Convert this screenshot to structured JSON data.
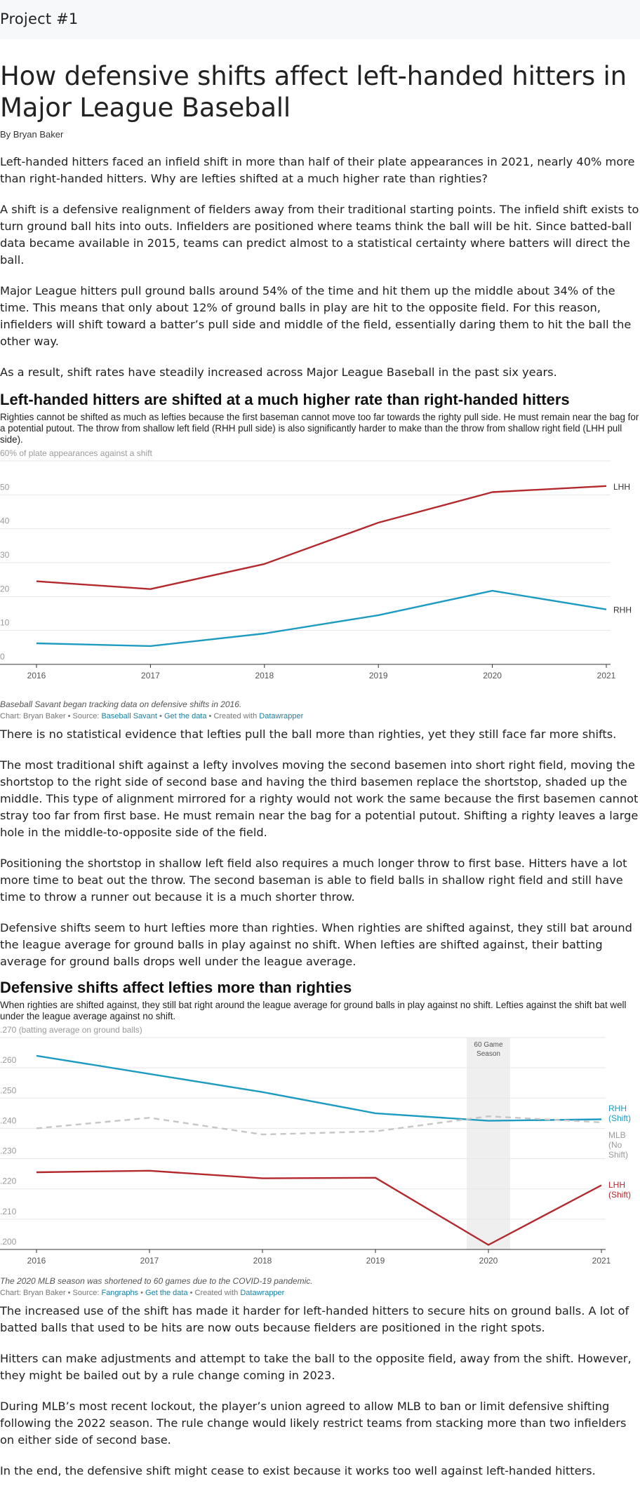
{
  "header": {
    "project": "Project #1"
  },
  "article": {
    "headline": "How defensive shifts affect left-handed hitters in Major League Baseball",
    "byline": "By Bryan Baker",
    "paragraphs_intro": [
      "Left-handed hitters faced an infield shift in more than half of their plate appearances in 2021, nearly 40% more than right-handed hitters. Why are lefties shifted at a much higher rate than righties?",
      "A shift is a defensive realignment of fielders away from their traditional starting points. The infield shift exists to turn ground ball hits into outs. Infielders are positioned where teams think the ball will be hit. Since batted-ball data became available in 2015, teams can predict almost to a statistical certainty where batters will direct the ball.",
      "Major League hitters pull ground balls around 54% of the time and hit them up the middle about 34% of the time. This means that only about 12% of ground balls in play are hit to the opposite field. For this reason, infielders will shift toward a batter’s pull side and middle of the field, essentially daring them to hit the ball the other way.",
      "As a result, shift rates have steadily increased across Major League Baseball in the past six years."
    ],
    "paragraphs_mid": [
      "There is no statistical evidence that lefties pull the ball more than righties, yet they still face far more shifts.",
      "The most traditional shift against a lefty involves moving the second basemen into short right field, moving the shortstop to the right side of second base and having the third basemen replace the shortstop, shaded up the middle. This type of alignment mirrored for a righty would not work the same because the first basemen cannot stray too far from first base. He must remain near the bag for a potential putout. Shifting a righty leaves a large hole in the middle-to-opposite side of the field.",
      "Positioning the shortstop in shallow left field also requires a much longer throw to first base. Hitters have a lot more time to beat out the throw. The second baseman is able to field balls in shallow right field and still have time to throw a runner out because it is a much shorter throw.",
      "Defensive shifts seem to hurt lefties more than righties. When righties are shifted against, they still bat around the league average for ground balls in play against no shift. When lefties are shifted against, their batting average for ground balls drops well under the league average."
    ],
    "paragraphs_end": [
      "The increased use of the shift has made it harder for left-handed hitters to secure hits on ground balls. A lot of batted balls that used to be hits are now outs because fielders are positioned in the right spots.",
      "Hitters can make adjustments and attempt to take the ball to the opposite field, away from the shift. However, they might be bailed out by a rule change coming in 2023.",
      "During MLB’s most recent lockout, the player’s union agreed to allow MLB to ban or limit defensive shifting following the 2022 season. The rule change would likely restrict teams from stacking more than two infielders on either side of second base.",
      "In the end, the defensive shift might cease to exist because it works too well against left-handed hitters."
    ]
  },
  "chart1": {
    "heading": "Left-handed hitters are shifted at a much higher rate than right-handed hitters",
    "description": "Righties cannot be shifted as much as lefties because the first baseman cannot move too far towards the righty pull side. He must remain near the bag for a potential putout. The throw from shallow left field (RHH pull side) is also significantly harder to make than the throw from shallow right field (LHH pull side).",
    "note": "Baseball Savant began tracking data on defensive shifts in 2016.",
    "credit": {
      "prefix": "Chart: Bryan Baker • Source: ",
      "source": "Baseball Savant",
      "sep": " • ",
      "data_link": "Get the data",
      "created": " • Created with ",
      "tool": "Datawrapper"
    }
  },
  "chart2": {
    "heading": "Defensive shifts affect lefties more than righties",
    "description": "When righties are shifted against, they still bat right around the league average for ground balls in play against no shift. Lefties against the shift bat well under the league average against no shift.",
    "note": "The 2020 MLB season was shortened to 60 games due to the COVID-19 pandemic.",
    "credit": {
      "prefix": "Chart: Bryan Baker • Source: ",
      "source": "Fangraphs",
      "sep": " • ",
      "data_link": "Get the data",
      "created": " • Created with ",
      "tool": "Datawrapper"
    }
  },
  "chart_data": [
    {
      "type": "line",
      "x": [
        2016,
        2017,
        2018,
        2019,
        2020,
        2021
      ],
      "ylabel": "60% of plate appearances against a shift",
      "y_ticks": [
        "50",
        "40",
        "30",
        "20",
        "10",
        "0"
      ],
      "y_tick_values": [
        50,
        40,
        30,
        20,
        10,
        0
      ],
      "x_ticks": [
        "2016",
        "2017",
        "2018",
        "2019",
        "2020",
        "2021"
      ],
      "ylim": [
        0,
        60
      ],
      "grid": true,
      "series": [
        {
          "name": "LHH",
          "color": "#b2292e",
          "values": [
            24.5,
            22.2,
            29.6,
            41.8,
            50.8,
            52.6
          ]
        },
        {
          "name": "RHH",
          "color": "#1d9bc0",
          "values": [
            6.2,
            5.4,
            9.1,
            14.5,
            21.7,
            16.2
          ]
        }
      ]
    },
    {
      "type": "line",
      "x": [
        2016,
        2017,
        2018,
        2019,
        2020,
        2021
      ],
      "ylabel": ".270 (batting average on ground balls)",
      "y_ticks": [
        ".260",
        ".250",
        ".240",
        ".230",
        ".220",
        ".210",
        ".200"
      ],
      "y_tick_values": [
        0.26,
        0.25,
        0.24,
        0.23,
        0.22,
        0.21,
        0.2
      ],
      "x_ticks": [
        "2016",
        "2017",
        "2018",
        "2019",
        "2020",
        "2021"
      ],
      "ylim": [
        0.2,
        0.27
      ],
      "grid": true,
      "annotation": {
        "label_1": "60 Game",
        "label_2": "Season",
        "year": 2020
      },
      "series": [
        {
          "name": "RHH (Shift)",
          "label_lines": [
            "RHH",
            "(Shift)"
          ],
          "color": "#1d9bc0",
          "dashed": false,
          "values": [
            0.264,
            0.258,
            0.252,
            0.245,
            0.2425,
            0.243
          ]
        },
        {
          "name": "MLB (No Shift)",
          "label_lines": [
            "MLB",
            "(No",
            "Shift)"
          ],
          "color": "#c6c6c6",
          "dashed": true,
          "values": [
            0.24,
            0.2435,
            0.238,
            0.239,
            0.244,
            0.242
          ]
        },
        {
          "name": "LHH (Shift)",
          "label_lines": [
            "LHH",
            "(Shift)"
          ],
          "color": "#b2292e",
          "dashed": false,
          "values": [
            0.2255,
            0.226,
            0.2235,
            0.2237,
            0.2015,
            0.2212
          ]
        }
      ]
    }
  ]
}
